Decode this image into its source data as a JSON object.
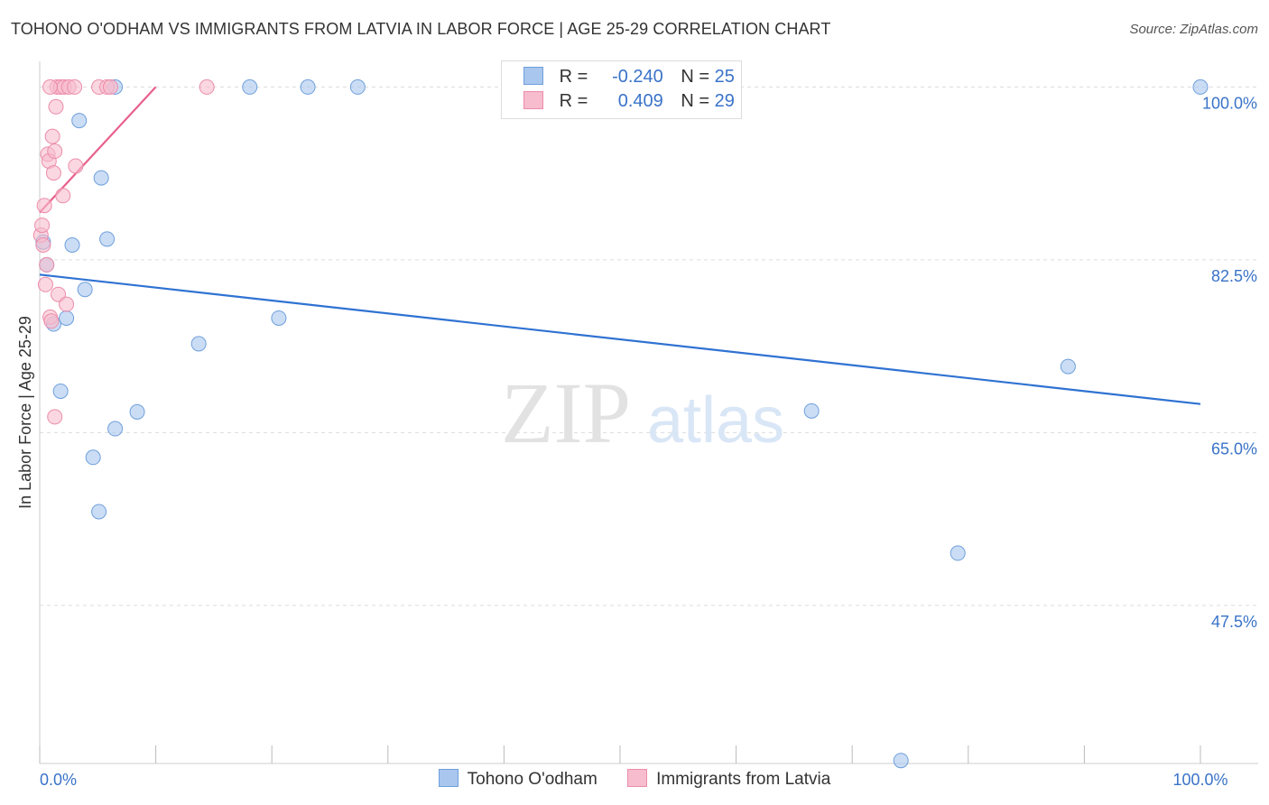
{
  "title": "TOHONO O'ODHAM VS IMMIGRANTS FROM LATVIA IN LABOR FORCE | AGE 25-29 CORRELATION CHART",
  "source": "Source: ZipAtlas.com",
  "watermark": {
    "zip": "ZIP",
    "atlas": "atlas"
  },
  "colors": {
    "blue_fill": "#a9c6ee",
    "blue_stroke": "#6e9fdc",
    "blue_line": "#2f72d2",
    "pink_fill": "#f7bccd",
    "pink_stroke": "#ec8ca9",
    "pink_line": "#e8608c",
    "tick_label": "#3a73c8",
    "grid": "#dcdcdc"
  },
  "legend": {
    "series1": {
      "r_label": "R =",
      "r_value": "-0.240",
      "n_label": "N =",
      "n_value": "25"
    },
    "series2": {
      "r_label": "R =",
      "r_value": "0.409",
      "n_label": "N =",
      "n_value": "29"
    }
  },
  "chart_data": {
    "type": "scatter",
    "title": "TOHONO O'ODHAM VS IMMIGRANTS FROM LATVIA IN LABOR FORCE | AGE 25-29 CORRELATION CHART",
    "xlabel": "",
    "ylabel": "In Labor Force | Age 25-29",
    "xlim": [
      0,
      100
    ],
    "ylim": [
      31.5,
      101.5
    ],
    "x_tick_labels": [
      {
        "value": 0,
        "label": "0.0%"
      },
      {
        "value": 100,
        "label": "100.0%"
      }
    ],
    "y_tick_labels": [
      {
        "value": 100,
        "label": "100.0%"
      },
      {
        "value": 82.5,
        "label": "82.5%"
      },
      {
        "value": 65,
        "label": "65.0%"
      },
      {
        "value": 47.5,
        "label": "47.5%"
      }
    ],
    "grid": true,
    "series": [
      {
        "name": "Tohono O'odham",
        "color": "blue",
        "points": [
          {
            "x": 0.3,
            "y": 84.3
          },
          {
            "x": 0.6,
            "y": 82.0
          },
          {
            "x": 1.2,
            "y": 76.0
          },
          {
            "x": 1.8,
            "y": 69.2
          },
          {
            "x": 2.3,
            "y": 76.6
          },
          {
            "x": 2.8,
            "y": 84.0
          },
          {
            "x": 3.4,
            "y": 96.6
          },
          {
            "x": 3.9,
            "y": 79.5
          },
          {
            "x": 4.6,
            "y": 62.5
          },
          {
            "x": 5.1,
            "y": 57.0
          },
          {
            "x": 5.3,
            "y": 90.8
          },
          {
            "x": 5.8,
            "y": 84.6
          },
          {
            "x": 6.5,
            "y": 65.4
          },
          {
            "x": 6.5,
            "y": 100.0
          },
          {
            "x": 8.4,
            "y": 67.1
          },
          {
            "x": 13.7,
            "y": 74.0
          },
          {
            "x": 18.1,
            "y": 100.0
          },
          {
            "x": 20.6,
            "y": 76.6
          },
          {
            "x": 23.1,
            "y": 100.0
          },
          {
            "x": 27.4,
            "y": 100.0
          },
          {
            "x": 66.5,
            "y": 67.2
          },
          {
            "x": 79.1,
            "y": 52.8
          },
          {
            "x": 74.2,
            "y": 31.8
          },
          {
            "x": 88.6,
            "y": 71.7
          },
          {
            "x": 100.0,
            "y": 100.0
          }
        ],
        "trendline": {
          "x": [
            0,
            100
          ],
          "y": [
            81.0,
            67.9
          ]
        }
      },
      {
        "name": "Immigrants from Latvia",
        "color": "pink",
        "points": [
          {
            "x": 0.1,
            "y": 85.0
          },
          {
            "x": 0.2,
            "y": 86.0
          },
          {
            "x": 0.3,
            "y": 84.0
          },
          {
            "x": 0.4,
            "y": 88.0
          },
          {
            "x": 0.5,
            "y": 80.0
          },
          {
            "x": 0.6,
            "y": 82.0
          },
          {
            "x": 0.7,
            "y": 93.2
          },
          {
            "x": 0.8,
            "y": 92.5
          },
          {
            "x": 0.9,
            "y": 76.7
          },
          {
            "x": 1.0,
            "y": 76.3
          },
          {
            "x": 1.1,
            "y": 95.0
          },
          {
            "x": 1.2,
            "y": 91.3
          },
          {
            "x": 1.3,
            "y": 93.5
          },
          {
            "x": 1.3,
            "y": 66.6
          },
          {
            "x": 1.4,
            "y": 98.0
          },
          {
            "x": 1.5,
            "y": 100.0
          },
          {
            "x": 1.6,
            "y": 79.0
          },
          {
            "x": 1.8,
            "y": 100.0
          },
          {
            "x": 2.0,
            "y": 89.0
          },
          {
            "x": 2.1,
            "y": 100.0
          },
          {
            "x": 2.3,
            "y": 78.0
          },
          {
            "x": 2.5,
            "y": 100.0
          },
          {
            "x": 3.0,
            "y": 100.0
          },
          {
            "x": 3.1,
            "y": 92.0
          },
          {
            "x": 5.1,
            "y": 100.0
          },
          {
            "x": 5.8,
            "y": 100.0
          },
          {
            "x": 6.1,
            "y": 100.0
          },
          {
            "x": 14.4,
            "y": 100.0
          },
          {
            "x": 0.9,
            "y": 100.0
          }
        ],
        "trendline": {
          "x": [
            0,
            10
          ],
          "y": [
            87.3,
            100.0
          ]
        }
      }
    ]
  },
  "bottom_legend": {
    "item1": "Tohono O'odham",
    "item2": "Immigrants from Latvia"
  }
}
